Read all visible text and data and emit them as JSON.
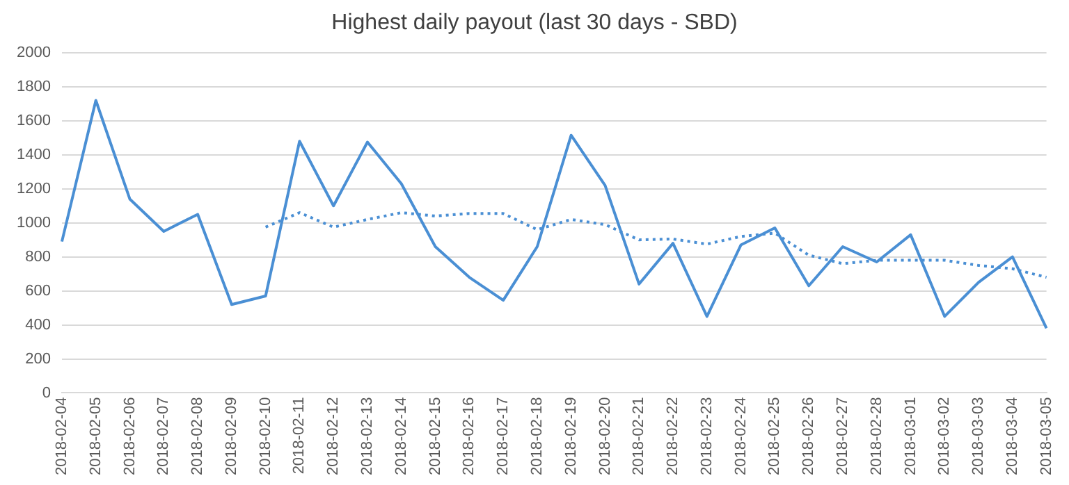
{
  "chart_data": {
    "type": "line",
    "title": "Highest daily payout (last 30 days - SBD)",
    "categories": [
      "2018-02-04",
      "2018-02-05",
      "2018-02-06",
      "2018-02-07",
      "2018-02-08",
      "2018-02-09",
      "2018-02-10",
      "2018-02-11",
      "2018-02-12",
      "2018-02-13",
      "2018-02-14",
      "2018-02-15",
      "2018-02-16",
      "2018-02-17",
      "2018-02-18",
      "2018-02-19",
      "2018-02-20",
      "2018-02-21",
      "2018-02-22",
      "2018-02-23",
      "2018-02-24",
      "2018-02-25",
      "2018-02-26",
      "2018-02-27",
      "2018-02-28",
      "2018-03-01",
      "2018-03-02",
      "2018-03-03",
      "2018-03-04",
      "2018-03-05"
    ],
    "series": [
      {
        "color": "#4a8fd4",
        "line_style": "solid",
        "values": [
          890,
          1720,
          1140,
          950,
          1050,
          520,
          570,
          1480,
          1100,
          1475,
          1230,
          860,
          680,
          545,
          860,
          1515,
          1220,
          640,
          880,
          450,
          870,
          970,
          630,
          860,
          770,
          930,
          450,
          650,
          800,
          380
        ]
      },
      {
        "color": "#4a8fd4",
        "line_style": "dotted",
        "values": [
          null,
          null,
          null,
          null,
          null,
          null,
          975,
          1060,
          975,
          1020,
          1060,
          1040,
          1055,
          1055,
          960,
          1020,
          990,
          900,
          905,
          875,
          920,
          940,
          810,
          760,
          780,
          780,
          780,
          750,
          730,
          680
        ]
      }
    ],
    "ylim": [
      0,
      2000
    ],
    "yticks": [
      0,
      200,
      400,
      600,
      800,
      1000,
      1200,
      1400,
      1600,
      1800,
      2000
    ],
    "grid": "y",
    "legend": false,
    "marker": "none"
  }
}
